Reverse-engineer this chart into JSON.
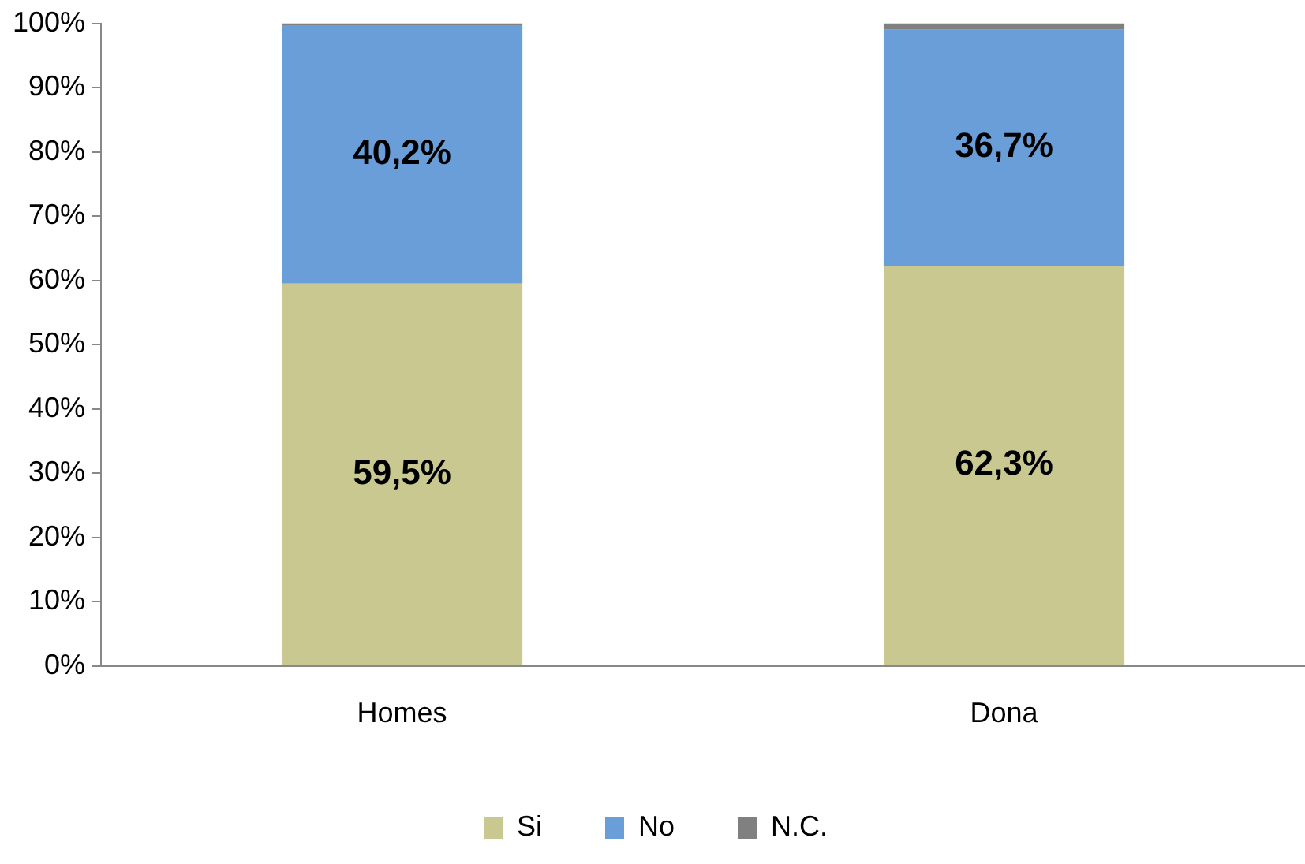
{
  "chart_data": {
    "type": "bar",
    "stacked": true,
    "categories": [
      "Homes",
      "Dona"
    ],
    "series": [
      {
        "name": "Si",
        "color": "#c8c890",
        "values": [
          59.5,
          62.3
        ],
        "value_labels": [
          "59,5%",
          "62,3%"
        ]
      },
      {
        "name": "No",
        "color": "#6a9ed8",
        "values": [
          40.2,
          36.7
        ],
        "value_labels": [
          "40,2%",
          "36,7%"
        ]
      },
      {
        "name": "N.C.",
        "color": "#808080",
        "values": [
          0.3,
          1.0
        ],
        "value_labels": [
          null,
          null
        ]
      }
    ],
    "ylim": [
      0,
      100
    ],
    "yticks": [
      {
        "value": 0,
        "label": "0%"
      },
      {
        "value": 10,
        "label": "10%"
      },
      {
        "value": 20,
        "label": "20%"
      },
      {
        "value": 30,
        "label": "30%"
      },
      {
        "value": 40,
        "label": "40%"
      },
      {
        "value": 50,
        "label": "50%"
      },
      {
        "value": 60,
        "label": "60%"
      },
      {
        "value": 70,
        "label": "70%"
      },
      {
        "value": 80,
        "label": "80%"
      },
      {
        "value": 90,
        "label": "90%"
      },
      {
        "value": 100,
        "label": "100%"
      }
    ],
    "grid": false,
    "legend": "bottom"
  }
}
